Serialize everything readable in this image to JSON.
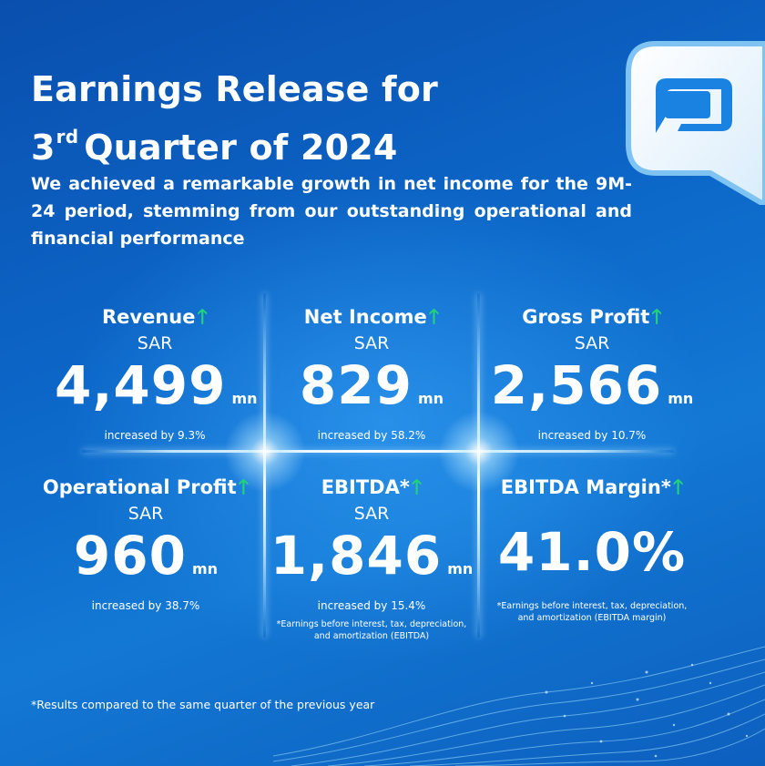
{
  "header": {
    "title_line1": "Earnings Release for",
    "title_line2_prefix": "3",
    "title_line2_sup": "rd",
    "title_line2_suffix": "Quarter of 2024",
    "subtitle": "We achieved a remarkable growth in net income for the 9M-24 period, stemming from our outstanding operational and financial performance"
  },
  "colors": {
    "background": "#0c67c8",
    "accent_arrow": "#22d37a",
    "text": "#ffffff"
  },
  "icons": {
    "brand_logo": "q-logo-icon",
    "trend": "up-arrow-icon"
  },
  "metrics": [
    {
      "label": "Revenue",
      "arrow": "🡑",
      "currency": "SAR",
      "value": "4,499",
      "unit": "mn",
      "change": "increased by 9.3%"
    },
    {
      "label": "Net Income",
      "arrow": "🡑",
      "currency": "SAR",
      "value": "829",
      "unit": "mn",
      "change": "increased by 58.2%"
    },
    {
      "label": "Gross Profit",
      "arrow": "🡑",
      "currency": "SAR",
      "value": "2,566",
      "unit": "mn",
      "change": "increased by 10.7%"
    },
    {
      "label": "Operational Profit",
      "arrow": "🡑",
      "currency": "SAR",
      "value": "960",
      "unit": "mn",
      "change": "increased by 38.7%"
    },
    {
      "label": "EBITDA*",
      "arrow": "🡑",
      "currency": "SAR",
      "value": "1,846",
      "unit": "mn",
      "change": "increased by 15.4%",
      "note_line1": "*Earnings before interest, tax, depreciation,",
      "note_line2": "and amortization (EBITDA)"
    },
    {
      "label": "EBITDA Margin*",
      "arrow": "🡑",
      "value": "41.0%",
      "note_line1": "*Earnings before interest, tax, depreciation,",
      "note_line2": "and amortization (EBITDA margin)"
    }
  ],
  "footnote": "*Results compared to the same quarter of the previous year"
}
